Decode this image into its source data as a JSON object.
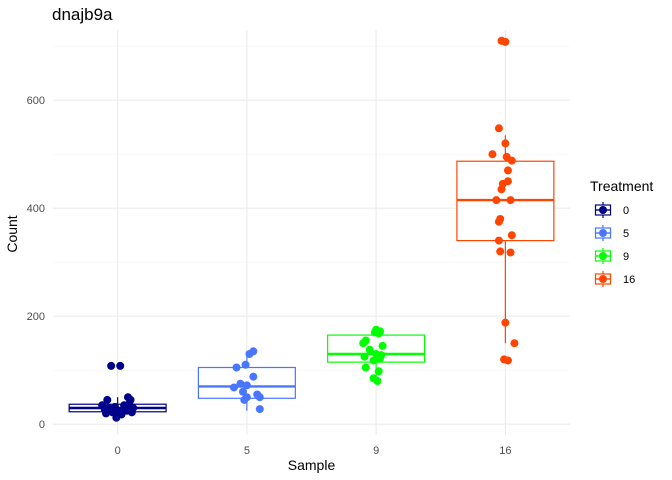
{
  "chart_data": {
    "type": "boxplot",
    "title": "dnajb9a",
    "xlabel": "Sample",
    "ylabel": "Count",
    "categories": [
      "0",
      "5",
      "9",
      "16"
    ],
    "ylim": [
      -20,
      730
    ],
    "yticks": [
      0,
      200,
      400,
      600
    ],
    "grid": true,
    "legend": {
      "title": "Treatment",
      "position": "right",
      "entries": [
        "0",
        "5",
        "9",
        "16"
      ]
    },
    "series": [
      {
        "name": "0",
        "color": "#00008B",
        "box": {
          "min": 10,
          "q1": 23,
          "median": 30,
          "q3": 37,
          "max": 50
        },
        "points": [
          [
            -0.05,
            108
          ],
          [
            0.02,
            108
          ],
          [
            -0.08,
            45
          ],
          [
            0.08,
            50
          ],
          [
            0.1,
            45
          ],
          [
            -0.12,
            35
          ],
          [
            0.05,
            35
          ],
          [
            -0.02,
            32
          ],
          [
            0.12,
            30
          ],
          [
            -0.1,
            28
          ],
          [
            0.0,
            25
          ],
          [
            0.07,
            25
          ],
          [
            -0.04,
            22
          ],
          [
            -0.09,
            20
          ],
          [
            0.03,
            18
          ],
          [
            -0.01,
            12
          ],
          [
            0.06,
            28
          ],
          [
            -0.07,
            30
          ],
          [
            0.09,
            38
          ],
          [
            0.11,
            22
          ]
        ]
      },
      {
        "name": "5",
        "color": "#4876FF",
        "box": {
          "min": 25,
          "q1": 48,
          "median": 70,
          "q3": 105,
          "max": 135
        },
        "points": [
          [
            0.05,
            135
          ],
          [
            0.02,
            130
          ],
          [
            -0.08,
            105
          ],
          [
            -0.01,
            110
          ],
          [
            0.05,
            88
          ],
          [
            -0.05,
            75
          ],
          [
            0.0,
            72
          ],
          [
            -0.1,
            68
          ],
          [
            -0.03,
            60
          ],
          [
            0.08,
            55
          ],
          [
            0.1,
            50
          ],
          [
            -0.02,
            45
          ],
          [
            0.0,
            50
          ],
          [
            0.1,
            28
          ]
        ]
      },
      {
        "name": "9",
        "color": "#00FF00",
        "box": {
          "min": 80,
          "q1": 115,
          "median": 130,
          "q3": 165,
          "max": 175
        },
        "points": [
          [
            0.0,
            175
          ],
          [
            0.03,
            172
          ],
          [
            -0.01,
            170
          ],
          [
            0.02,
            168
          ],
          [
            -0.08,
            155
          ],
          [
            -0.1,
            150
          ],
          [
            0.05,
            145
          ],
          [
            -0.05,
            138
          ],
          [
            0.0,
            130
          ],
          [
            0.04,
            128
          ],
          [
            -0.09,
            125
          ],
          [
            0.03,
            122
          ],
          [
            -0.02,
            118
          ],
          [
            -0.08,
            105
          ],
          [
            0.02,
            98
          ],
          [
            -0.02,
            85
          ],
          [
            0.01,
            80
          ]
        ]
      },
      {
        "name": "16",
        "color": "#FF4500",
        "box": {
          "min": 150,
          "q1": 340,
          "median": 415,
          "q3": 487,
          "max": 535
        },
        "points": [
          [
            -0.03,
            710
          ],
          [
            0.0,
            708
          ],
          [
            -0.05,
            548
          ],
          [
            0.0,
            520
          ],
          [
            0.01,
            495
          ],
          [
            -0.1,
            500
          ],
          [
            0.05,
            488
          ],
          [
            0.02,
            470
          ],
          [
            0.02,
            450
          ],
          [
            -0.02,
            445
          ],
          [
            -0.03,
            435
          ],
          [
            -0.07,
            415
          ],
          [
            0.04,
            415
          ],
          [
            -0.04,
            380
          ],
          [
            -0.05,
            375
          ],
          [
            0.05,
            350
          ],
          [
            -0.05,
            340
          ],
          [
            -0.04,
            320
          ],
          [
            0.04,
            318
          ],
          [
            0.0,
            188
          ],
          [
            0.07,
            150
          ],
          [
            -0.01,
            120
          ],
          [
            0.02,
            118
          ]
        ]
      }
    ]
  }
}
